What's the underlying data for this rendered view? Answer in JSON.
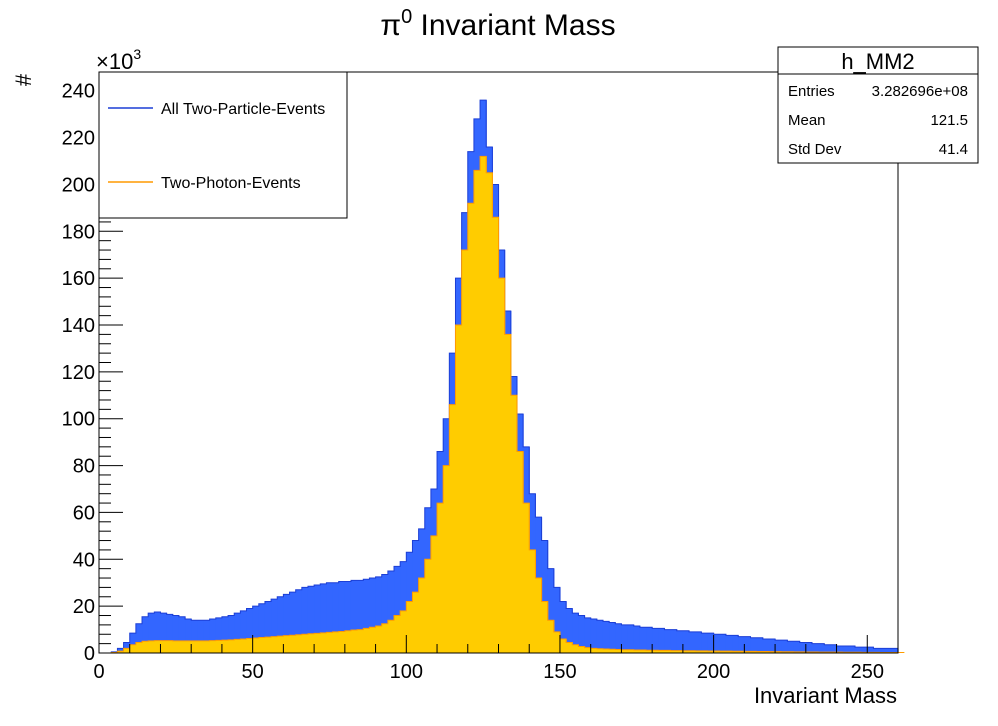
{
  "chart_data": {
    "type": "bar",
    "title_symbol": "π",
    "title_superscript": "0",
    "title_rest": " Invariant Mass",
    "xlabel": "Invariant Mass",
    "ylabel": "#",
    "y_exponent_base": "×10",
    "y_exponent_power": "3",
    "xlim": [
      0,
      260
    ],
    "ylim": [
      0,
      248000
    ],
    "bin_width": 2,
    "xticks": [
      0,
      50,
      100,
      150,
      200,
      250
    ],
    "yticks": [
      0,
      20000,
      40000,
      60000,
      80000,
      100000,
      120000,
      140000,
      160000,
      180000,
      200000,
      220000,
      240000
    ],
    "ytick_labels": [
      "0",
      "20",
      "40",
      "60",
      "80",
      "100",
      "120",
      "140",
      "160",
      "180",
      "200",
      "220",
      "240"
    ],
    "grid": false,
    "legend_position": "top-left",
    "legend": [
      {
        "label": "All Two-Particle-Events",
        "color": "#1c3fd6"
      },
      {
        "label": "Two-Photon-Events",
        "color": "#ff9a00"
      }
    ],
    "stats_box": {
      "name": "h_MM2",
      "rows": [
        {
          "label": "Entries",
          "value": "3.282696e+08"
        },
        {
          "label": "Mean",
          "value": "121.5"
        },
        {
          "label": "Std Dev",
          "value": "41.4"
        }
      ]
    },
    "series": [
      {
        "name": "All Two-Particle-Events",
        "fill": "#3366ff",
        "edge": "#1c3fd6",
        "values": [
          0,
          0,
          500,
          2000,
          4500,
          8500,
          12500,
          15500,
          17000,
          17500,
          17000,
          16500,
          16000,
          15500,
          14500,
          14000,
          14000,
          14000,
          14500,
          15000,
          15500,
          16000,
          17000,
          18000,
          19000,
          20000,
          21000,
          22000,
          23000,
          24000,
          25000,
          26000,
          27000,
          28000,
          28500,
          29000,
          29500,
          30000,
          30000,
          30500,
          30500,
          31000,
          31000,
          31500,
          32000,
          32500,
          33500,
          35000,
          37000,
          39000,
          43000,
          48000,
          53000,
          62000,
          70000,
          86000,
          100000,
          128000,
          160000,
          188000,
          214000,
          228000,
          236000,
          216000,
          200000,
          172000,
          146000,
          118000,
          102000,
          88000,
          68000,
          58000,
          48000,
          36000,
          28000,
          22000,
          19000,
          17000,
          16000,
          15000,
          14500,
          14000,
          13500,
          13000,
          12500,
          12000,
          12000,
          11500,
          11000,
          11000,
          10500,
          10500,
          10000,
          10000,
          9500,
          9500,
          9000,
          9000,
          8500,
          8500,
          8000,
          8000,
          7500,
          7500,
          7000,
          7000,
          6500,
          6500,
          6000,
          6000,
          5500,
          5500,
          5000,
          5000,
          4500,
          4500,
          4000,
          4000,
          3500,
          3500,
          3000,
          3000,
          3000,
          2500,
          2500,
          2500,
          2000,
          2000,
          2000,
          2000
        ]
      },
      {
        "name": "Two-Photon-Events",
        "fill": "#ffcc00",
        "edge": "#ff9a00",
        "values": [
          0,
          0,
          200,
          800,
          2000,
          3500,
          4500,
          5000,
          5200,
          5300,
          5300,
          5300,
          5200,
          5200,
          5200,
          5200,
          5200,
          5200,
          5300,
          5400,
          5500,
          5600,
          5800,
          6000,
          6200,
          6400,
          6600,
          6800,
          7000,
          7200,
          7400,
          7600,
          7800,
          8000,
          8200,
          8400,
          8600,
          8800,
          9000,
          9200,
          9500,
          9800,
          10000,
          10500,
          11000,
          11500,
          12500,
          14000,
          16000,
          18000,
          22000,
          26000,
          32000,
          40000,
          50000,
          64000,
          80000,
          106000,
          140000,
          172000,
          192000,
          206000,
          212000,
          205000,
          186000,
          160000,
          136000,
          110000,
          86000,
          64000,
          44000,
          32000,
          22000,
          14000,
          9000,
          6000,
          4500,
          3500,
          2800,
          2300,
          2000,
          1800,
          1700,
          1600,
          1500,
          1400,
          1400,
          1300,
          1300,
          1200,
          1200,
          1100,
          1100,
          1000,
          1000,
          950,
          950,
          900,
          900,
          850,
          850,
          800,
          800,
          750,
          750,
          700,
          700,
          650,
          650,
          600,
          600,
          550,
          550,
          500,
          500,
          450,
          450,
          400,
          400,
          350,
          350,
          300,
          300,
          300,
          250,
          250,
          250,
          200,
          200,
          200,
          200
        ]
      }
    ]
  }
}
